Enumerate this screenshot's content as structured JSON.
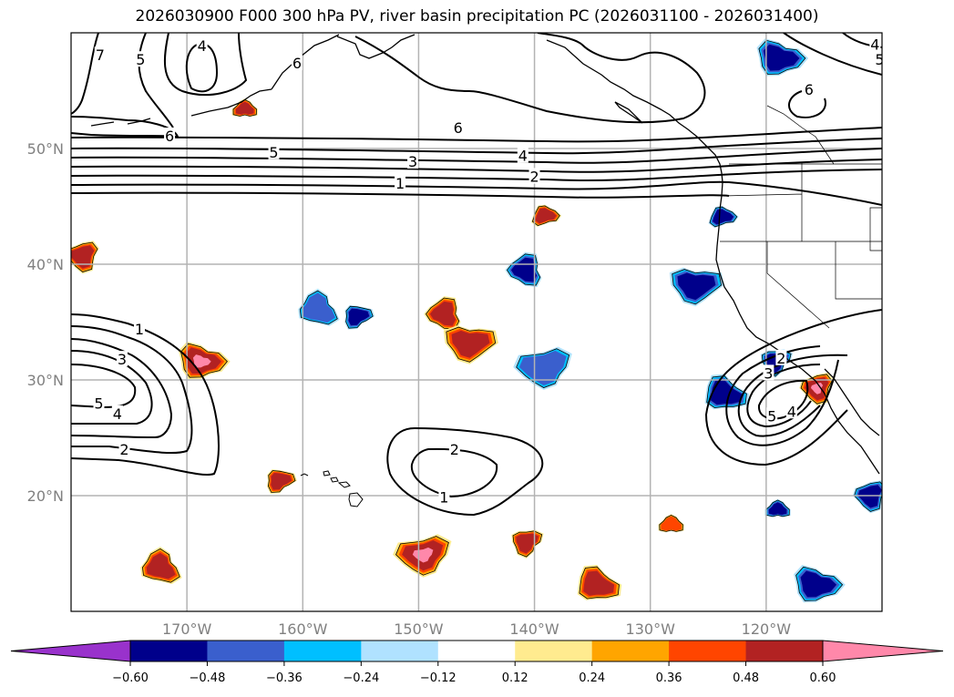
{
  "title": "2026030900 F000 300 hPa PV, river basin precipitation PC (2026031100 - 2026031400)",
  "chart_data": {
    "type": "map-contour",
    "title": "2026030900 F000 300 hPa PV, river basin precipitation PC (2026031100 - 2026031400)",
    "projection": "PlateCarree",
    "extent": {
      "lon": [
        -180,
        -110
      ],
      "lat": [
        10,
        60
      ]
    },
    "grid": true,
    "lon_ticks": [
      {
        "value": -170,
        "label": "170°W"
      },
      {
        "value": -160,
        "label": "160°W"
      },
      {
        "value": -150,
        "label": "150°W"
      },
      {
        "value": -140,
        "label": "140°W"
      },
      {
        "value": -130,
        "label": "130°W"
      },
      {
        "value": -120,
        "label": "120°W"
      }
    ],
    "lat_ticks": [
      {
        "value": 50,
        "label": "50°N"
      },
      {
        "value": 40,
        "label": "40°N"
      },
      {
        "value": 30,
        "label": "30°N"
      },
      {
        "value": 20,
        "label": "20°N"
      }
    ],
    "contour_field": "300 hPa PV",
    "contour_levels": [
      1,
      2,
      3,
      4,
      5,
      6,
      7
    ],
    "contour_labels": [
      {
        "text": "7",
        "lon": -177.5,
        "lat": 58.1
      },
      {
        "text": "5",
        "lon": -174.0,
        "lat": 57.7
      },
      {
        "text": "4",
        "lon": -168.7,
        "lat": 58.9
      },
      {
        "text": "6",
        "lon": -160.5,
        "lat": 57.4
      },
      {
        "text": "6",
        "lon": -171.5,
        "lat": 51.1
      },
      {
        "text": "5",
        "lon": -162.5,
        "lat": 49.7
      },
      {
        "text": "6",
        "lon": -146.6,
        "lat": 51.8
      },
      {
        "text": "3",
        "lon": -150.5,
        "lat": 48.9
      },
      {
        "text": "4",
        "lon": -141.0,
        "lat": 49.4
      },
      {
        "text": "2",
        "lon": -140.0,
        "lat": 47.6
      },
      {
        "text": "1",
        "lon": -151.6,
        "lat": 47.0
      },
      {
        "text": "4",
        "lon": -110.6,
        "lat": 59.0
      },
      {
        "text": "5",
        "lon": -110.2,
        "lat": 57.7
      },
      {
        "text": "6",
        "lon": -116.3,
        "lat": 55.1
      },
      {
        "text": "1",
        "lon": -174.1,
        "lat": 34.4
      },
      {
        "text": "3",
        "lon": -175.6,
        "lat": 31.8
      },
      {
        "text": "5",
        "lon": -177.6,
        "lat": 28.0
      },
      {
        "text": "4",
        "lon": -176.0,
        "lat": 27.1
      },
      {
        "text": "2",
        "lon": -175.4,
        "lat": 24.0
      },
      {
        "text": "2",
        "lon": -146.9,
        "lat": 24.0
      },
      {
        "text": "1",
        "lon": -147.8,
        "lat": 19.9
      },
      {
        "text": "2",
        "lon": -118.7,
        "lat": 31.9
      },
      {
        "text": "3",
        "lon": -119.8,
        "lat": 30.6
      },
      {
        "text": "5",
        "lon": -119.5,
        "lat": 26.9
      },
      {
        "text": "4",
        "lon": -117.8,
        "lat": 27.3
      }
    ],
    "shading_field": "river basin precipitation PC",
    "colorbar": {
      "orientation": "horizontal",
      "extend": "both",
      "boundaries": [
        -0.6,
        -0.48,
        -0.36,
        -0.24,
        -0.12,
        0.12,
        0.24,
        0.36,
        0.48,
        0.6
      ],
      "tick_labels": [
        "−0.60",
        "−0.48",
        "−0.36",
        "−0.24",
        "−0.12",
        "0.12",
        "0.24",
        "0.36",
        "0.48",
        "0.60"
      ],
      "colors": [
        "#9932cc",
        "#00008b",
        "#3a5fcd",
        "#00bfff",
        "#b0e2ff",
        "#ffffff",
        "#ffeb8f",
        "#ffa500",
        "#ff4500",
        "#b22222",
        "#ff88aa"
      ]
    },
    "precip_blobs": [
      {
        "sign": "positive",
        "lon": -165.0,
        "lat": 53.4,
        "max_category": 0.48
      },
      {
        "sign": "positive",
        "lon": -179.0,
        "lat": 40.7,
        "max_category": 0.48
      },
      {
        "sign": "positive",
        "lon": -168.8,
        "lat": 31.6,
        "max_category": 0.6
      },
      {
        "sign": "positive",
        "lon": -139.1,
        "lat": 44.2,
        "max_category": 0.48
      },
      {
        "sign": "positive",
        "lon": -147.8,
        "lat": 35.7,
        "max_category": 0.48
      },
      {
        "sign": "positive",
        "lon": -145.6,
        "lat": 33.2,
        "max_category": 0.48
      },
      {
        "sign": "positive",
        "lon": -162.0,
        "lat": 21.3,
        "max_category": 0.48
      },
      {
        "sign": "positive",
        "lon": -172.3,
        "lat": 13.8,
        "max_category": 0.48
      },
      {
        "sign": "positive",
        "lon": -149.6,
        "lat": 14.9,
        "max_category": 0.6
      },
      {
        "sign": "positive",
        "lon": -140.7,
        "lat": 16.0,
        "max_category": 0.48
      },
      {
        "sign": "positive",
        "lon": -134.6,
        "lat": 12.3,
        "max_category": 0.48
      },
      {
        "sign": "positive",
        "lon": -128.2,
        "lat": 17.5,
        "max_category": 0.36
      },
      {
        "sign": "positive",
        "lon": -115.6,
        "lat": 29.3,
        "max_category": 0.6
      },
      {
        "sign": "negative",
        "lon": -118.9,
        "lat": 57.8,
        "max_category": -0.48
      },
      {
        "sign": "negative",
        "lon": -123.8,
        "lat": 44.1,
        "max_category": -0.48
      },
      {
        "sign": "negative",
        "lon": -140.8,
        "lat": 39.5,
        "max_category": -0.48
      },
      {
        "sign": "negative",
        "lon": -126.1,
        "lat": 38.2,
        "max_category": -0.48
      },
      {
        "sign": "negative",
        "lon": -155.3,
        "lat": 35.5,
        "max_category": -0.48
      },
      {
        "sign": "negative",
        "lon": -158.7,
        "lat": 36.1,
        "max_category": -0.36
      },
      {
        "sign": "negative",
        "lon": -139.2,
        "lat": 31.1,
        "max_category": -0.36
      },
      {
        "sign": "negative",
        "lon": -119.2,
        "lat": 31.6,
        "max_category": -0.48
      },
      {
        "sign": "negative",
        "lon": -123.6,
        "lat": 28.8,
        "max_category": -0.48
      },
      {
        "sign": "negative",
        "lon": -119.0,
        "lat": 18.8,
        "max_category": -0.48
      },
      {
        "sign": "negative",
        "lon": -111.0,
        "lat": 20.0,
        "max_category": -0.48
      },
      {
        "sign": "negative",
        "lon": -115.7,
        "lat": 12.3,
        "max_category": -0.48
      }
    ]
  }
}
